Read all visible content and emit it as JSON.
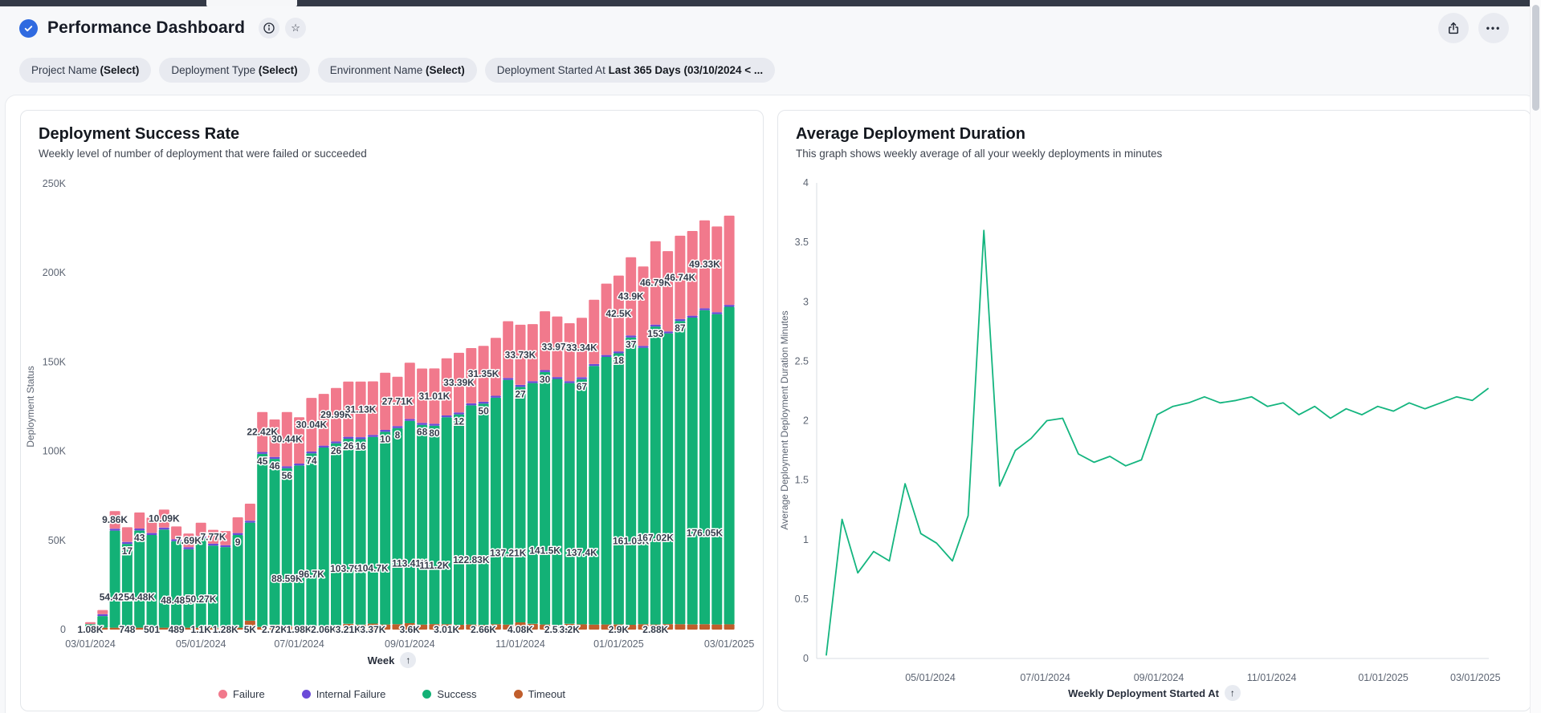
{
  "header": {
    "title": "Performance Dashboard",
    "star_icon": "☆",
    "ellipsis": "•••"
  },
  "filters": [
    {
      "label": "Project Name",
      "value": "(Select)"
    },
    {
      "label": "Deployment Type",
      "value": "(Select)"
    },
    {
      "label": "Environment Name",
      "value": "(Select)"
    },
    {
      "label": "Deployment Started At",
      "value": "Last 365 Days (03/10/2024 < ..."
    }
  ],
  "sort_arrow": "↑",
  "chart_data": [
    {
      "type": "bar",
      "stacked": true,
      "title": "Deployment Success Rate",
      "subtitle": "Weekly level of number of deployment that were failed or succeeded",
      "xlabel": "Week",
      "ylabel": "Deployment Status",
      "ylim": [
        0,
        250000
      ],
      "grid": false,
      "legend_position": "bottom",
      "yticks": [
        {
          "v": 0,
          "label": "0"
        },
        {
          "v": 50000,
          "label": "50K"
        },
        {
          "v": 100000,
          "label": "100K"
        },
        {
          "v": 150000,
          "label": "150K"
        },
        {
          "v": 200000,
          "label": "200K"
        },
        {
          "v": 250000,
          "label": "250K"
        }
      ],
      "xticks": [
        {
          "i": 0,
          "label": "03/01/2024"
        },
        {
          "i": 9,
          "label": "05/01/2024"
        },
        {
          "i": 17,
          "label": "07/01/2024"
        },
        {
          "i": 26,
          "label": "09/01/2024"
        },
        {
          "i": 35,
          "label": "11/01/2024"
        },
        {
          "i": 43,
          "label": "01/01/2025"
        },
        {
          "i": 52,
          "label": "03/01/2025"
        }
      ],
      "colors": {
        "failure": "#f1798c",
        "internal_failure": "#6b4bd8",
        "success": "#13b176",
        "timeout": "#c05e2c"
      },
      "stack_order": [
        "timeout",
        "success",
        "internal_failure",
        "failure"
      ],
      "legend": [
        {
          "label": "Failure",
          "color": "#f1798c"
        },
        {
          "label": "Internal Failure",
          "color": "#6b4bd8"
        },
        {
          "label": "Success",
          "color": "#13b176"
        },
        {
          "label": "Timeout",
          "color": "#c05e2c"
        }
      ],
      "bars": [
        {
          "failure": 900,
          "internal_failure": 0,
          "success": 2000,
          "timeout": 1080,
          "labels": {
            "timeout": "1.08K"
          }
        },
        {
          "failure": 2300,
          "internal_failure": 3,
          "success": 6500,
          "timeout": 400
        },
        {
          "failure": 9860,
          "internal_failure": 12,
          "success": 54420,
          "timeout": 600,
          "labels": {
            "failure": "9.86K",
            "success": "54.42K"
          }
        },
        {
          "failure": 8200,
          "internal_failure": 17,
          "success": 47000,
          "timeout": 748,
          "labels": {
            "internal_failure": "17",
            "timeout": "748"
          }
        },
        {
          "failure": 9000,
          "internal_failure": 43,
          "success": 54480,
          "timeout": 500,
          "labels": {
            "internal_failure": "43",
            "success": "54.48K"
          }
        },
        {
          "failure": 8600,
          "internal_failure": 20,
          "success": 52000,
          "timeout": 501,
          "labels": {
            "timeout": "501"
          }
        },
        {
          "failure": 10090,
          "internal_failure": 15,
          "success": 55000,
          "timeout": 600,
          "labels": {
            "failure": "10.09K"
          }
        },
        {
          "failure": 7200,
          "internal_failure": 12,
          "success": 48480,
          "timeout": 489,
          "labels": {
            "success": "48.48K",
            "timeout": "489"
          }
        },
        {
          "failure": 7690,
          "internal_failure": 10,
          "success": 44000,
          "timeout": 500,
          "labels": {
            "failure": "7.69K"
          }
        },
        {
          "failure": 7500,
          "internal_failure": 8,
          "success": 50270,
          "timeout": 1100,
          "labels": {
            "success": "50.27K",
            "timeout": "1.1K"
          }
        },
        {
          "failure": 7770,
          "internal_failure": 12,
          "success": 46000,
          "timeout": 600,
          "labels": {
            "failure": "7.77K"
          }
        },
        {
          "failure": 7900,
          "internal_failure": 10,
          "success": 45000,
          "timeout": 1280,
          "labels": {
            "timeout": "1.28K"
          }
        },
        {
          "failure": 8800,
          "internal_failure": 9,
          "success": 52000,
          "timeout": 900,
          "labels": {
            "internal_failure": "9"
          }
        },
        {
          "failure": 9500,
          "internal_failure": 14,
          "success": 55000,
          "timeout": 5000,
          "labels": {
            "timeout": "5K"
          }
        },
        {
          "failure": 22420,
          "internal_failure": 45,
          "success": 97000,
          "timeout": 1500,
          "labels": {
            "failure": "22.42K",
            "internal_failure": "45"
          }
        },
        {
          "failure": 21000,
          "internal_failure": 46,
          "success": 93000,
          "timeout": 2720,
          "labels": {
            "internal_failure": "46",
            "timeout": "2.72K"
          }
        },
        {
          "failure": 30440,
          "internal_failure": 56,
          "success": 88590,
          "timeout": 1900,
          "labels": {
            "failure": "30.44K",
            "internal_failure": "56",
            "success": "88.59K"
          }
        },
        {
          "failure": 26000,
          "internal_failure": 60,
          "success": 90000,
          "timeout": 1980,
          "labels": {
            "timeout": "1.98K"
          }
        },
        {
          "failure": 30040,
          "internal_failure": 74,
          "success": 96700,
          "timeout": 2100,
          "labels": {
            "failure": "30.04K",
            "internal_failure": "74",
            "success": "96.7K"
          }
        },
        {
          "failure": 29000,
          "internal_failure": 30,
          "success": 100000,
          "timeout": 2060,
          "labels": {
            "timeout": "2.06K"
          }
        },
        {
          "failure": 29990,
          "internal_failure": 26,
          "success": 102000,
          "timeout": 2400,
          "labels": {
            "failure": "29.99K",
            "internal_failure": "26"
          }
        },
        {
          "failure": 31000,
          "internal_failure": 26,
          "success": 103790,
          "timeout": 3210,
          "labels": {
            "internal_failure": "26",
            "success": "103.79K",
            "timeout": "3.21K"
          }
        },
        {
          "failure": 31130,
          "internal_failure": 16,
          "success": 104000,
          "timeout": 2800,
          "labels": {
            "failure": "31.13K",
            "internal_failure": "16"
          }
        },
        {
          "failure": 30000,
          "internal_failure": 20,
          "success": 104700,
          "timeout": 3370,
          "labels": {
            "success": "104.7K",
            "timeout": "3.37K"
          }
        },
        {
          "failure": 32000,
          "internal_failure": 10,
          "success": 108000,
          "timeout": 2900,
          "labels": {
            "internal_failure": "10"
          }
        },
        {
          "failure": 27710,
          "internal_failure": 8,
          "success": 110000,
          "timeout": 3000,
          "labels": {
            "failure": "27.71K",
            "internal_failure": "8"
          }
        },
        {
          "failure": 31500,
          "internal_failure": 25,
          "success": 113410,
          "timeout": 3600,
          "labels": {
            "success": "113.41K",
            "timeout": "3.6K"
          }
        },
        {
          "failure": 30500,
          "internal_failure": 68,
          "success": 112000,
          "timeout": 2800,
          "labels": {
            "internal_failure": "68"
          }
        },
        {
          "failure": 31010,
          "internal_failure": 80,
          "success": 111200,
          "timeout": 3100,
          "labels": {
            "failure": "31.01K",
            "internal_failure": "80",
            "success": "111.2K"
          }
        },
        {
          "failure": 32000,
          "internal_failure": 40,
          "success": 116000,
          "timeout": 3010,
          "labels": {
            "timeout": "3.01K"
          }
        },
        {
          "failure": 33390,
          "internal_failure": 12,
          "success": 118000,
          "timeout": 2700,
          "labels": {
            "failure": "33.39K",
            "internal_failure": "12"
          }
        },
        {
          "failure": 31000,
          "internal_failure": 30,
          "success": 122830,
          "timeout": 2900,
          "labels": {
            "success": "122.83K"
          }
        },
        {
          "failure": 31350,
          "internal_failure": 50,
          "success": 124000,
          "timeout": 2660,
          "labels": {
            "failure": "31.35K",
            "internal_failure": "50",
            "timeout": "2.66K"
          }
        },
        {
          "failure": 32500,
          "internal_failure": 35,
          "success": 127000,
          "timeout": 3000
        },
        {
          "failure": 31800,
          "internal_failure": 40,
          "success": 137210,
          "timeout": 2800,
          "labels": {
            "success": "137.21K"
          }
        },
        {
          "failure": 33730,
          "internal_failure": 27,
          "success": 132000,
          "timeout": 4080,
          "labels": {
            "failure": "33.73K",
            "internal_failure": "27",
            "timeout": "4.08K"
          }
        },
        {
          "failure": 32000,
          "internal_failure": 35,
          "success": 135000,
          "timeout": 3200
        },
        {
          "failure": 33000,
          "internal_failure": 30,
          "success": 141500,
          "timeout": 2900,
          "labels": {
            "internal_failure": "30",
            "success": "141.5K"
          }
        },
        {
          "failure": 33970,
          "internal_failure": 45,
          "success": 138000,
          "timeout": 2510,
          "labels": {
            "failure": "33.97K",
            "timeout": "2.51K"
          }
        },
        {
          "failure": 32500,
          "internal_failure": 40,
          "success": 135000,
          "timeout": 3200,
          "labels": {
            "timeout": "3.2K"
          }
        },
        {
          "failure": 33340,
          "internal_failure": 67,
          "success": 137400,
          "timeout": 3000,
          "labels": {
            "failure": "33.34K",
            "internal_failure": "67",
            "success": "137.4K"
          }
        },
        {
          "failure": 36000,
          "internal_failure": 50,
          "success": 145000,
          "timeout": 2800
        },
        {
          "failure": 40000,
          "internal_failure": 55,
          "success": 150000,
          "timeout": 2900
        },
        {
          "failure": 42500,
          "internal_failure": 18,
          "success": 152000,
          "timeout": 2900,
          "labels": {
            "failure": "42.5K",
            "internal_failure": "18",
            "timeout": "2.9K"
          }
        },
        {
          "failure": 43900,
          "internal_failure": 37,
          "success": 161090,
          "timeout": 2700,
          "labels": {
            "failure": "43.9K",
            "internal_failure": "37",
            "success": "161.09K"
          }
        },
        {
          "failure": 44500,
          "internal_failure": 60,
          "success": 155000,
          "timeout": 3000
        },
        {
          "failure": 46790,
          "internal_failure": 153,
          "success": 167020,
          "timeout": 2880,
          "labels": {
            "failure": "46.79K",
            "internal_failure": "153",
            "success": "167.02K",
            "timeout": "2.88K"
          }
        },
        {
          "failure": 45000,
          "internal_failure": 70,
          "success": 163000,
          "timeout": 3100
        },
        {
          "failure": 46740,
          "internal_failure": 87,
          "success": 170000,
          "timeout": 3000,
          "labels": {
            "failure": "46.74K",
            "internal_failure": "87"
          }
        },
        {
          "failure": 47500,
          "internal_failure": 75,
          "success": 172000,
          "timeout": 2900
        },
        {
          "failure": 49330,
          "internal_failure": 90,
          "success": 176050,
          "timeout": 3000,
          "labels": {
            "failure": "49.33K",
            "success": "176.05K"
          }
        },
        {
          "failure": 48000,
          "internal_failure": 80,
          "success": 174000,
          "timeout": 2900
        },
        {
          "failure": 50000,
          "internal_failure": 85,
          "success": 178000,
          "timeout": 3000
        }
      ]
    },
    {
      "type": "line",
      "title": "Average Deployment Duration",
      "subtitle": "This graph shows weekly average of all your weekly deployments in minutes",
      "xlabel": "Weekly Deployment Started At",
      "ylabel": "Average Deployment Deployment Duration Minutes",
      "ylim": [
        0,
        4
      ],
      "grid": false,
      "color": "#14b57f",
      "yticks": [
        {
          "v": 0,
          "label": "0"
        },
        {
          "v": 0.5,
          "label": "0.5"
        },
        {
          "v": 1,
          "label": "1"
        },
        {
          "v": 1.5,
          "label": "1.5"
        },
        {
          "v": 2,
          "label": "2"
        },
        {
          "v": 2.5,
          "label": "2.5"
        },
        {
          "v": 3,
          "label": "3"
        },
        {
          "v": 3.5,
          "label": "3.5"
        },
        {
          "v": 4,
          "label": "4"
        }
      ],
      "xticks": [
        {
          "f": 0.169,
          "label": "05/01/2024"
        },
        {
          "f": 0.34,
          "label": "07/01/2024"
        },
        {
          "f": 0.509,
          "label": "09/01/2024"
        },
        {
          "f": 0.677,
          "label": "11/01/2024"
        },
        {
          "f": 0.843,
          "label": "01/01/2025"
        },
        {
          "f": 0.98,
          "label": "03/01/2025"
        }
      ],
      "values": [
        0.03,
        1.17,
        0.72,
        0.9,
        0.82,
        1.47,
        1.05,
        0.97,
        0.82,
        1.2,
        3.6,
        1.45,
        1.75,
        1.85,
        2.0,
        2.02,
        1.72,
        1.65,
        1.7,
        1.62,
        1.67,
        2.05,
        2.12,
        2.15,
        2.2,
        2.15,
        2.17,
        2.2,
        2.12,
        2.15,
        2.05,
        2.12,
        2.02,
        2.1,
        2.05,
        2.12,
        2.08,
        2.15,
        2.1,
        2.15,
        2.2,
        2.17,
        2.27
      ]
    }
  ]
}
